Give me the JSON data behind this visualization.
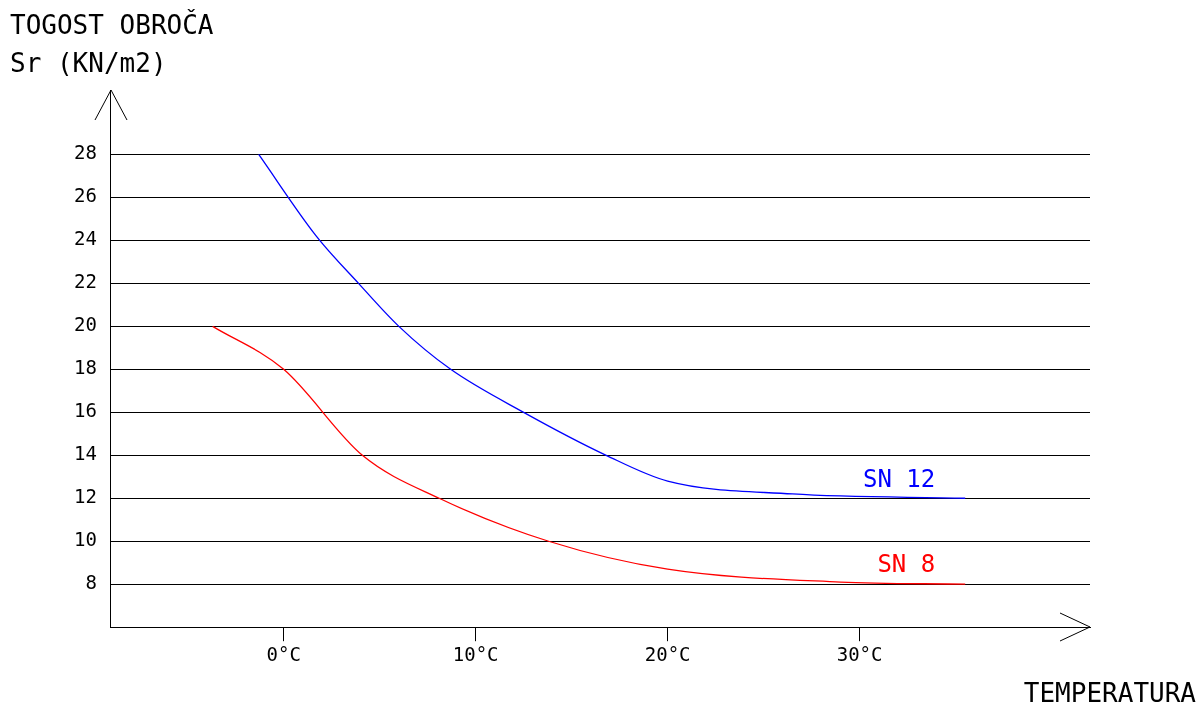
{
  "chart_data": {
    "type": "line",
    "title": "TOGOST OBROČA",
    "ylabel": "Sr (KN/m2)",
    "xlabel": "TEMPERATURA",
    "xlim": [
      -9,
      42
    ],
    "xticks": [
      {
        "value": 0,
        "label": "0°C"
      },
      {
        "value": 10,
        "label": "10°C"
      },
      {
        "value": 20,
        "label": "20°C"
      },
      {
        "value": 30,
        "label": "30°C"
      }
    ],
    "ylim": [
      6,
      31
    ],
    "yticks": [
      8,
      10,
      12,
      14,
      16,
      18,
      20,
      22,
      24,
      26,
      28
    ],
    "grid": "y",
    "legend": false,
    "marker": "none",
    "line_style": "solid",
    "series": [
      {
        "name": "SN 12",
        "color": "#0000ff",
        "x": [
          -1.3,
          1.7,
          3.9,
          6,
          8.7,
          12.5,
          16.8,
          20,
          26.5,
          35.5
        ],
        "values": [
          28,
          24.2,
          22,
          20,
          18,
          16,
          14,
          12.8,
          12.2,
          12
        ]
      },
      {
        "name": "SN 8",
        "color": "#ff0000",
        "x": [
          -3.7,
          0,
          4.1,
          8.1,
          13.8,
          20,
          29,
          35.5
        ],
        "values": [
          20,
          18,
          14,
          12,
          10,
          8.7,
          8.1,
          8
        ]
      }
    ]
  }
}
